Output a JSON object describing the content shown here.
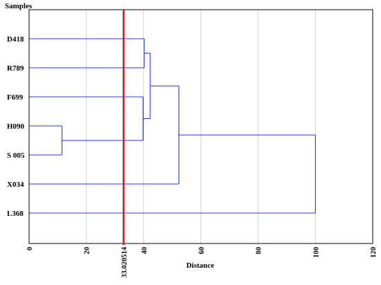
{
  "chart_data": {
    "type": "dendrogram",
    "ylabel": "Samples",
    "xlabel": "Distance",
    "xlim": [
      0,
      120
    ],
    "x_ticks": [
      "0",
      "20",
      "40",
      "60",
      "80",
      "100",
      "120"
    ],
    "vertical_grid": true,
    "samples": [
      "D418",
      "R789",
      "F699",
      "H090",
      "S 005",
      "X034",
      "L368"
    ],
    "merges": [
      {
        "left": "H090",
        "right": "S 005",
        "distance": 11.5
      },
      {
        "left": "D418",
        "right": "R789",
        "distance": 40.2
      },
      {
        "left": "F699",
        "right": "cluster(H090,S 005)",
        "distance": 39.8
      },
      {
        "left": "cluster(D418,R789)",
        "right": "cluster(F699,H090,S 005)",
        "distance": 42.3
      },
      {
        "left": "cluster(D418..S 005)",
        "right": "X034",
        "distance": 52.3
      },
      {
        "left": "cluster(D418..X034)",
        "right": "L368",
        "distance": 100
      }
    ],
    "cutoff": {
      "value": 33.020514,
      "label": "33.020514",
      "color": "#e01010"
    },
    "branch_color": "#2a35c8"
  }
}
